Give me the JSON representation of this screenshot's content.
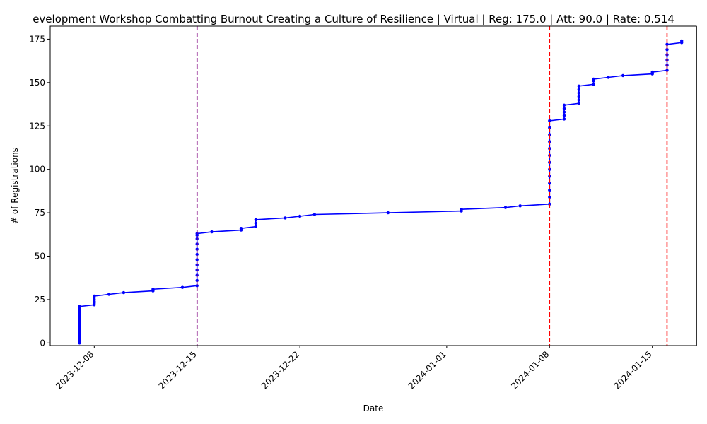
{
  "chart_data": {
    "type": "line",
    "title": "evelopment Workshop Combatting Burnout Creating a Culture of Resilience | Virtual | Reg: 175.0 | Att: 90.0 | Rate: 0.514",
    "xlabel": "Date",
    "ylabel": "# of Registrations",
    "xlim": [
      "2023-12-05",
      "2024-01-18"
    ],
    "ylim": [
      -1.5,
      182.5
    ],
    "x_ticks": [
      "2023-12-08",
      "2023-12-15",
      "2023-12-22",
      "2024-01-01",
      "2024-01-08",
      "2024-01-15"
    ],
    "y_ticks": [
      0,
      25,
      50,
      75,
      100,
      125,
      150,
      175
    ],
    "grid": false,
    "legend": "none",
    "series": [
      {
        "color": "#0000ff",
        "marker": "point",
        "points": [
          [
            "2023-12-07",
            0
          ],
          [
            "2023-12-07",
            1
          ],
          [
            "2023-12-07",
            2
          ],
          [
            "2023-12-07",
            3
          ],
          [
            "2023-12-07",
            4
          ],
          [
            "2023-12-07",
            5
          ],
          [
            "2023-12-07",
            6
          ],
          [
            "2023-12-07",
            7
          ],
          [
            "2023-12-07",
            8
          ],
          [
            "2023-12-07",
            9
          ],
          [
            "2023-12-07",
            10
          ],
          [
            "2023-12-07",
            11
          ],
          [
            "2023-12-07",
            12
          ],
          [
            "2023-12-07",
            13
          ],
          [
            "2023-12-07",
            14
          ],
          [
            "2023-12-07",
            15
          ],
          [
            "2023-12-07",
            16
          ],
          [
            "2023-12-07",
            17
          ],
          [
            "2023-12-07",
            18
          ],
          [
            "2023-12-07",
            19
          ],
          [
            "2023-12-07",
            20
          ],
          [
            "2023-12-07",
            21
          ],
          [
            "2023-12-08",
            22
          ],
          [
            "2023-12-08",
            23
          ],
          [
            "2023-12-08",
            24
          ],
          [
            "2023-12-08",
            25
          ],
          [
            "2023-12-08",
            26
          ],
          [
            "2023-12-08",
            27
          ],
          [
            "2023-12-09",
            28
          ],
          [
            "2023-12-10",
            29
          ],
          [
            "2023-12-12",
            30
          ],
          [
            "2023-12-12",
            31
          ],
          [
            "2023-12-14",
            32
          ],
          [
            "2023-12-15",
            33
          ],
          [
            "2023-12-15",
            36
          ],
          [
            "2023-12-15",
            39
          ],
          [
            "2023-12-15",
            42
          ],
          [
            "2023-12-15",
            45
          ],
          [
            "2023-12-15",
            48
          ],
          [
            "2023-12-15",
            51
          ],
          [
            "2023-12-15",
            54
          ],
          [
            "2023-12-15",
            57
          ],
          [
            "2023-12-15",
            60
          ],
          [
            "2023-12-15",
            62
          ],
          [
            "2023-12-15",
            63
          ],
          [
            "2023-12-16",
            64
          ],
          [
            "2023-12-18",
            65
          ],
          [
            "2023-12-18",
            66
          ],
          [
            "2023-12-19",
            67
          ],
          [
            "2023-12-19",
            69
          ],
          [
            "2023-12-19",
            71
          ],
          [
            "2023-12-21",
            72
          ],
          [
            "2023-12-22",
            73
          ],
          [
            "2023-12-23",
            74
          ],
          [
            "2023-12-28",
            75
          ],
          [
            "2024-01-02",
            76
          ],
          [
            "2024-01-02",
            77
          ],
          [
            "2024-01-05",
            78
          ],
          [
            "2024-01-06",
            79
          ],
          [
            "2024-01-08",
            80
          ],
          [
            "2024-01-08",
            84
          ],
          [
            "2024-01-08",
            88
          ],
          [
            "2024-01-08",
            92
          ],
          [
            "2024-01-08",
            96
          ],
          [
            "2024-01-08",
            100
          ],
          [
            "2024-01-08",
            104
          ],
          [
            "2024-01-08",
            108
          ],
          [
            "2024-01-08",
            112
          ],
          [
            "2024-01-08",
            116
          ],
          [
            "2024-01-08",
            120
          ],
          [
            "2024-01-08",
            124
          ],
          [
            "2024-01-08",
            128
          ],
          [
            "2024-01-09",
            129
          ],
          [
            "2024-01-09",
            131
          ],
          [
            "2024-01-09",
            133
          ],
          [
            "2024-01-09",
            135
          ],
          [
            "2024-01-09",
            137
          ],
          [
            "2024-01-10",
            138
          ],
          [
            "2024-01-10",
            140
          ],
          [
            "2024-01-10",
            142
          ],
          [
            "2024-01-10",
            144
          ],
          [
            "2024-01-10",
            146
          ],
          [
            "2024-01-10",
            148
          ],
          [
            "2024-01-11",
            149
          ],
          [
            "2024-01-11",
            151
          ],
          [
            "2024-01-11",
            152
          ],
          [
            "2024-01-12",
            153
          ],
          [
            "2024-01-13",
            154
          ],
          [
            "2024-01-15",
            155
          ],
          [
            "2024-01-15",
            156
          ],
          [
            "2024-01-16",
            157
          ],
          [
            "2024-01-16",
            160
          ],
          [
            "2024-01-16",
            163
          ],
          [
            "2024-01-16",
            166
          ],
          [
            "2024-01-16",
            169
          ],
          [
            "2024-01-16",
            172
          ],
          [
            "2024-01-17",
            173
          ],
          [
            "2024-01-17",
            174
          ]
        ]
      }
    ],
    "vertical_lines": [
      {
        "x": "2023-12-15",
        "color": "#800080",
        "style": "dashed"
      },
      {
        "x": "2024-01-08",
        "color": "#ff0000",
        "style": "dashed"
      },
      {
        "x": "2024-01-16",
        "color": "#ff0000",
        "style": "dashed"
      },
      {
        "x": "2024-01-18",
        "color": "#000000",
        "style": "solid"
      }
    ]
  }
}
